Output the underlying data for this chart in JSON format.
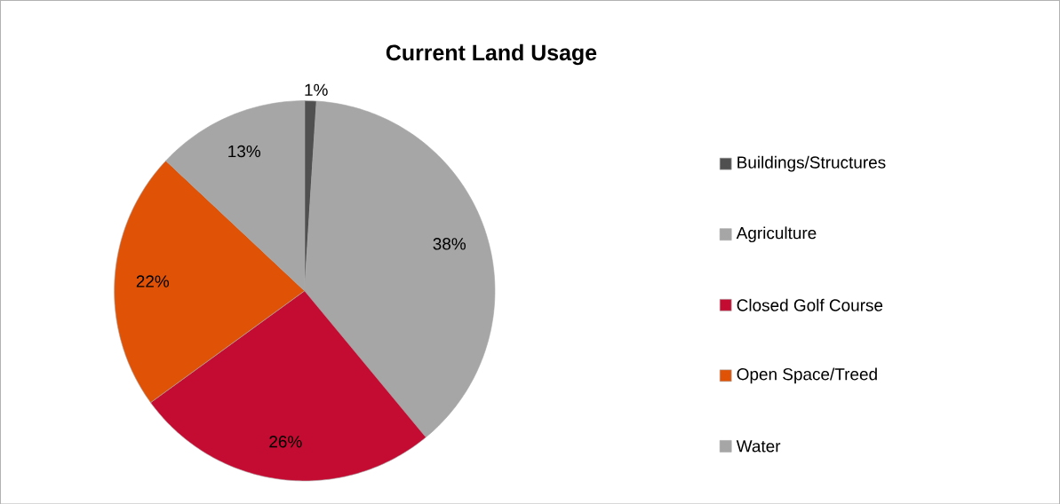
{
  "chart_data": {
    "type": "pie",
    "title": "Current Land Usage",
    "categories": [
      "Buildings/Structures",
      "Agriculture",
      "Closed Golf Course",
      "Open Space/Treed",
      "Water"
    ],
    "values": [
      1,
      38,
      26,
      22,
      13
    ],
    "colors": [
      "#505050",
      "#a6a6a6",
      "#c40c32",
      "#e05206",
      "#a6a6a6"
    ],
    "value_labels": [
      "1%",
      "38%",
      "26%",
      "22%",
      "13%"
    ],
    "legend": "right"
  }
}
